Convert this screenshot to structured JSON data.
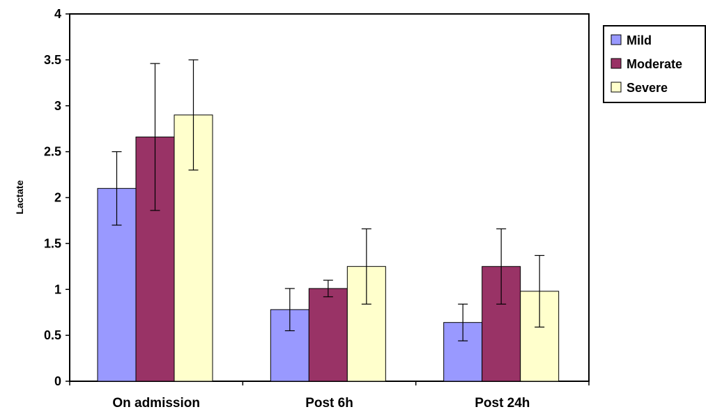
{
  "chart_data": {
    "type": "bar",
    "title": "",
    "xlabel": "",
    "ylabel": "Lactate",
    "ylim": [
      0,
      4
    ],
    "yticks": [
      "0",
      "0.5",
      "1",
      "1.5",
      "2",
      "2.5",
      "3",
      "3.5",
      "4"
    ],
    "grid": false,
    "legend_position": "right",
    "categories": [
      "On admission",
      "Post 6h",
      "Post 24h"
    ],
    "series": [
      {
        "name": "Mild",
        "color": "#9999ff",
        "values": [
          2.1,
          0.78,
          0.64
        ],
        "error": [
          0.4,
          0.23,
          0.2
        ]
      },
      {
        "name": "Moderate",
        "color": "#993366",
        "values": [
          2.66,
          1.01,
          1.25
        ],
        "error": [
          0.8,
          0.09,
          0.41
        ]
      },
      {
        "name": "Severe",
        "color": "#ffffcc",
        "values": [
          2.9,
          1.25,
          0.98
        ],
        "error": [
          0.6,
          0.41,
          0.39
        ]
      }
    ]
  }
}
